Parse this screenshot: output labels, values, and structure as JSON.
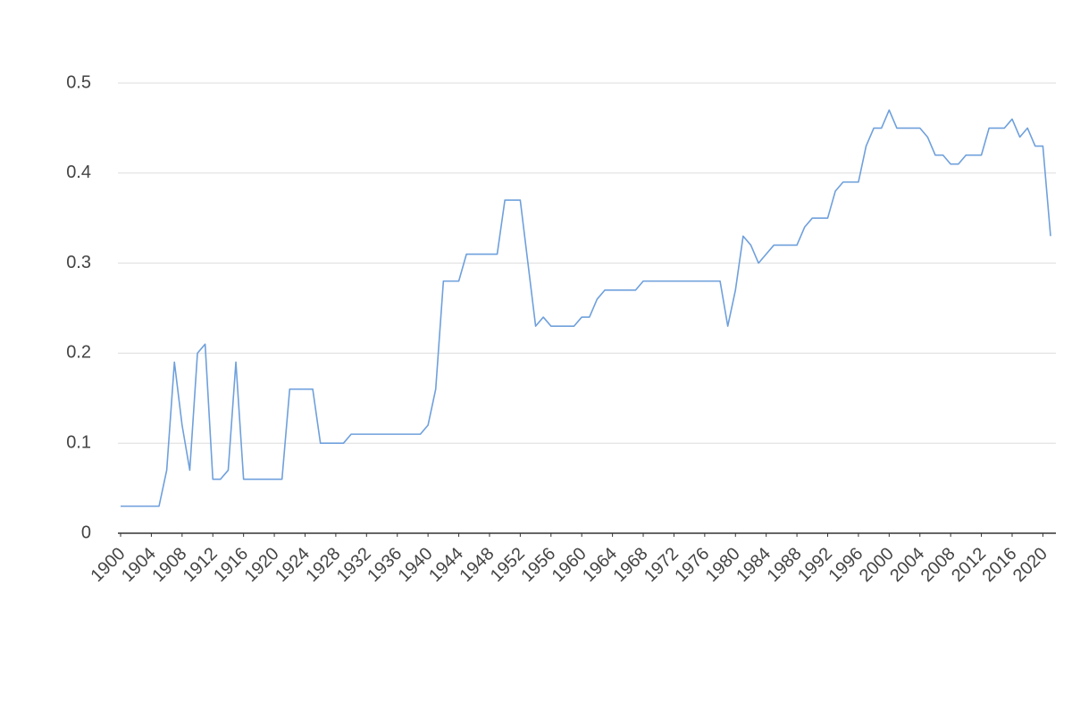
{
  "chart_data": {
    "type": "line",
    "x": [
      1900,
      1901,
      1902,
      1903,
      1904,
      1905,
      1906,
      1907,
      1908,
      1909,
      1910,
      1911,
      1912,
      1913,
      1914,
      1915,
      1916,
      1917,
      1918,
      1919,
      1920,
      1921,
      1922,
      1923,
      1924,
      1925,
      1926,
      1927,
      1928,
      1929,
      1930,
      1931,
      1932,
      1933,
      1934,
      1935,
      1936,
      1937,
      1938,
      1939,
      1940,
      1941,
      1942,
      1943,
      1944,
      1945,
      1946,
      1947,
      1948,
      1949,
      1950,
      1951,
      1952,
      1953,
      1954,
      1955,
      1956,
      1957,
      1958,
      1959,
      1960,
      1961,
      1962,
      1963,
      1964,
      1965,
      1966,
      1967,
      1968,
      1969,
      1970,
      1971,
      1972,
      1973,
      1974,
      1975,
      1976,
      1977,
      1978,
      1979,
      1980,
      1981,
      1982,
      1983,
      1984,
      1985,
      1986,
      1987,
      1988,
      1989,
      1990,
      1991,
      1992,
      1993,
      1994,
      1995,
      1996,
      1997,
      1998,
      1999,
      2000,
      2001,
      2002,
      2003,
      2004,
      2005,
      2006,
      2007,
      2008,
      2009,
      2010,
      2011,
      2012,
      2013,
      2014,
      2015,
      2016,
      2017,
      2018,
      2019,
      2020,
      2021
    ],
    "series": [
      {
        "color": "#6fa0dc",
        "values": [
          0.03,
          0.03,
          0.03,
          0.03,
          0.03,
          0.03,
          0.07,
          0.19,
          0.12,
          0.07,
          0.2,
          0.21,
          0.06,
          0.06,
          0.07,
          0.19,
          0.06,
          0.06,
          0.06,
          0.06,
          0.06,
          0.06,
          0.16,
          0.16,
          0.16,
          0.16,
          0.1,
          0.1,
          0.1,
          0.1,
          0.11,
          0.11,
          0.11,
          0.11,
          0.11,
          0.11,
          0.11,
          0.11,
          0.11,
          0.11,
          0.12,
          0.16,
          0.28,
          0.28,
          0.28,
          0.31,
          0.31,
          0.31,
          0.31,
          0.31,
          0.37,
          0.37,
          0.37,
          0.3,
          0.23,
          0.24,
          0.23,
          0.23,
          0.23,
          0.23,
          0.24,
          0.24,
          0.26,
          0.27,
          0.27,
          0.27,
          0.27,
          0.27,
          0.28,
          0.28,
          0.28,
          0.28,
          0.28,
          0.28,
          0.28,
          0.28,
          0.28,
          0.28,
          0.28,
          0.23,
          0.27,
          0.33,
          0.32,
          0.3,
          0.31,
          0.32,
          0.32,
          0.32,
          0.32,
          0.34,
          0.35,
          0.35,
          0.35,
          0.38,
          0.39,
          0.39,
          0.39,
          0.43,
          0.45,
          0.45,
          0.47,
          0.45,
          0.45,
          0.45,
          0.45,
          0.44,
          0.42,
          0.42,
          0.41,
          0.41,
          0.42,
          0.42,
          0.42,
          0.45,
          0.45,
          0.45,
          0.46,
          0.44,
          0.45,
          0.43,
          0.43,
          0.33
        ]
      }
    ],
    "xlim": [
      1900,
      2021
    ],
    "xticks": [
      1900,
      1904,
      1908,
      1912,
      1916,
      1920,
      1924,
      1928,
      1932,
      1936,
      1940,
      1944,
      1948,
      1952,
      1956,
      1960,
      1964,
      1968,
      1972,
      1976,
      1980,
      1984,
      1988,
      1992,
      1996,
      2000,
      2004,
      2008,
      2012,
      2016,
      2020
    ],
    "ylim": [
      0,
      0.5
    ],
    "yticks": [
      0,
      0.1,
      0.2,
      0.3,
      0.4,
      0.5
    ],
    "grid": true
  }
}
